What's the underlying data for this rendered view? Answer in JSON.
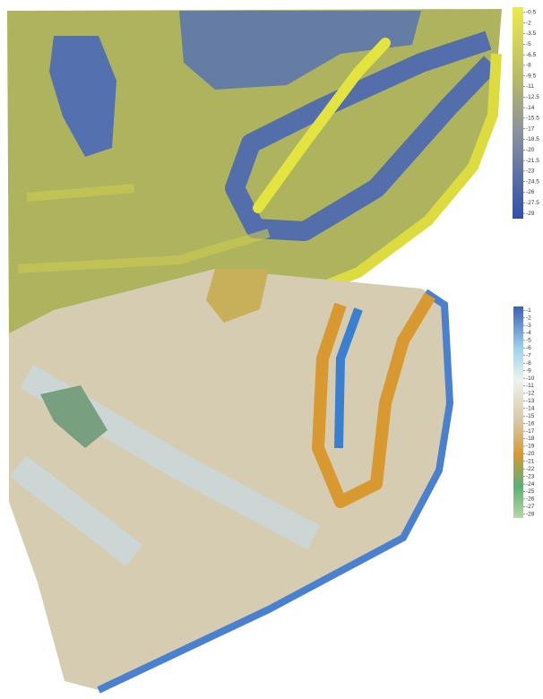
{
  "maps": [
    {
      "legend": {
        "ticks": [
          -0.5,
          -2,
          -3.5,
          -5,
          -6.5,
          -8,
          -9.5,
          -11,
          -12.5,
          -14,
          -15.5,
          -17,
          -18.5,
          -20,
          -21.5,
          -23,
          -24.5,
          -26,
          -27.5,
          -29
        ]
      }
    },
    {
      "legend": {
        "ticks": [
          -1,
          -2,
          -3,
          -4,
          -5,
          -6,
          -7,
          -8,
          -9,
          -10,
          -11,
          -12,
          -13,
          -14,
          -15,
          -16,
          -17,
          -18,
          -19,
          -20,
          -21,
          -22,
          -23,
          -24,
          -25,
          -26,
          -27,
          -28
        ]
      }
    }
  ]
}
